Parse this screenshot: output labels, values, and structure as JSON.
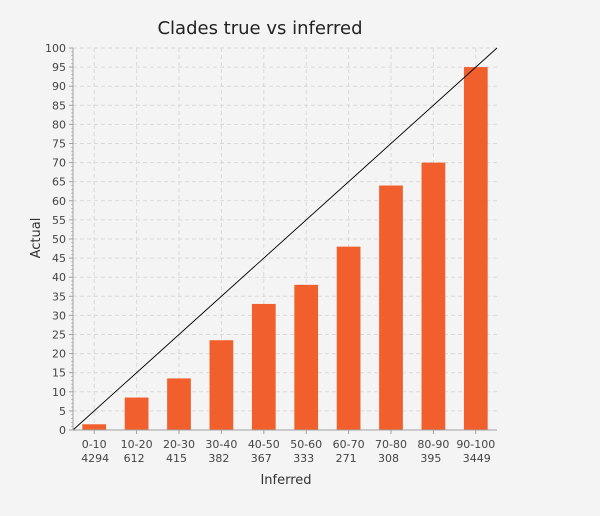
{
  "chart_data": {
    "type": "bar",
    "title": "Clades true vs inferred",
    "xlabel": "Inferred",
    "ylabel": "Actual",
    "ylim": [
      0,
      100
    ],
    "y_tick_labels": [
      "0",
      "5",
      "10",
      "15",
      "20",
      "25",
      "30",
      "35",
      "40",
      "45",
      "50",
      "55",
      "60",
      "65",
      "70",
      "75",
      "80",
      "85",
      "90",
      "95",
      "100"
    ],
    "categories": [
      "0-10",
      "10-20",
      "20-30",
      "30-40",
      "40-50",
      "50-60",
      "60-70",
      "70-80",
      "80-90",
      "90-100"
    ],
    "counts": [
      "4294",
      "612",
      "415",
      "382",
      "367",
      "333",
      "271",
      "308",
      "395",
      "3449"
    ],
    "values": [
      1.5,
      8.5,
      13.5,
      23.5,
      33,
      38,
      48,
      64,
      70,
      95
    ],
    "reference_line": {
      "type": "diagonal",
      "from": [
        0,
        0
      ],
      "to": [
        100,
        100
      ]
    },
    "grid": true,
    "legend": "none",
    "colors": {
      "bar": "#f15f2d",
      "grid": "#d9d9d9",
      "axis": "#a0a0a0",
      "text": "#444444",
      "title": "#222222",
      "diagonal": "#000000",
      "background": "#f4f4f4"
    }
  }
}
